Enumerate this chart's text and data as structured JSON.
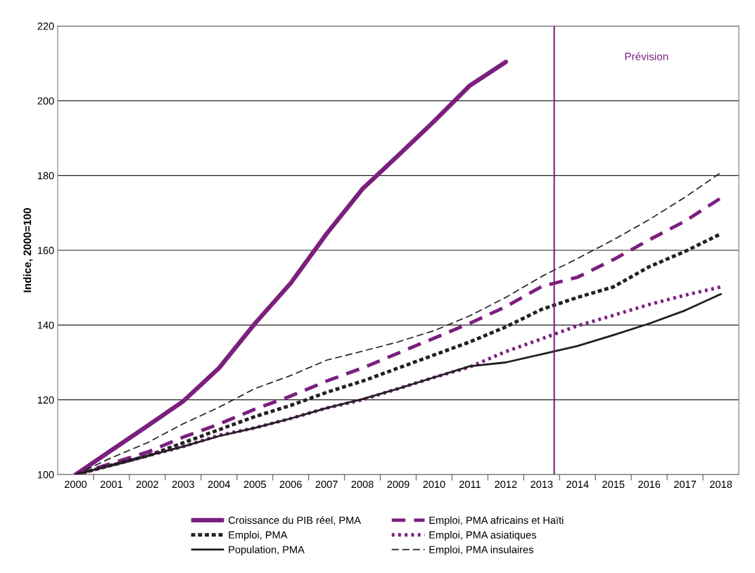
{
  "chart_data": {
    "type": "line",
    "ylabel": "Indice, 2000=100",
    "x": [
      2000,
      2001,
      2002,
      2003,
      2004,
      2005,
      2006,
      2007,
      2008,
      2009,
      2010,
      2011,
      2012,
      2013,
      2014,
      2015,
      2016,
      2017,
      2018
    ],
    "series": [
      {
        "name": "Croissance du PIB réel, PMA",
        "color": "#7b1f7f",
        "line_style": "solid",
        "values": [
          100,
          106.5,
          113,
          119.6,
          128.5,
          140.4,
          151.2,
          164.4,
          176.4,
          185.4,
          194.5,
          204.1,
          210.4,
          null,
          null,
          null,
          null,
          null,
          null
        ]
      },
      {
        "name": "Emploi, PMA africains et Haïti",
        "color": "#7b1f7f",
        "line_style": "dashed",
        "values": [
          100,
          103,
          106,
          110,
          113.5,
          117.5,
          121,
          125,
          128.5,
          132.5,
          136.5,
          140.5,
          144.9,
          150.3,
          152.8,
          157.5,
          162.8,
          167.8,
          174
        ]
      },
      {
        "name": "Emploi, PMA",
        "color": "#231f20",
        "line_style": "dashed",
        "values": [
          100,
          102.5,
          105,
          108.5,
          112,
          115.5,
          118.5,
          122,
          125,
          128.5,
          132,
          135.5,
          139.5,
          144.2,
          147.4,
          150.2,
          155.6,
          159.7,
          164.4
        ]
      },
      {
        "name": "Emploi, PMA asiatiques",
        "color": "#7b1f7f",
        "line_style": "dotted",
        "values": [
          100,
          102.5,
          105,
          107.5,
          110.5,
          112.5,
          115,
          117.8,
          120,
          123,
          126,
          128.8,
          132.9,
          136.3,
          139.8,
          142.6,
          145.5,
          148,
          150.2
        ]
      },
      {
        "name": "Population, PMA",
        "color": "#231f20",
        "line_style": "solid",
        "values": [
          100,
          102.5,
          105,
          107.5,
          110.3,
          112.5,
          115,
          117.8,
          120.2,
          123,
          126,
          129,
          130,
          132.2,
          134.4,
          137.3,
          140.4,
          143.9,
          148.3
        ]
      },
      {
        "name": "Emploi, PMA insulaires",
        "color": "#231f20",
        "line_style": "dashed",
        "values": [
          100,
          104.5,
          108.5,
          113.6,
          118,
          123,
          126.5,
          130.6,
          133,
          135.5,
          138.5,
          142.5,
          147.4,
          153,
          157.8,
          162.8,
          168.2,
          174.2,
          180.8
        ]
      }
    ],
    "xlim": [
      1999.5,
      2018.5
    ],
    "xticks": [
      2000,
      2001,
      2002,
      2003,
      2004,
      2005,
      2006,
      2007,
      2008,
      2009,
      2010,
      2011,
      2012,
      2013,
      2014,
      2015,
      2016,
      2017,
      2018
    ],
    "ylim": [
      100,
      220
    ],
    "yticks": [
      100,
      120,
      140,
      160,
      180,
      200,
      220
    ],
    "ref_lines": [
      {
        "axis": "x",
        "value": 2013.35,
        "label": "Prévision",
        "color": "#7b1f7f",
        "line_style": "solid"
      }
    ],
    "grid": "y",
    "legend": "bottom",
    "marker": "none"
  }
}
